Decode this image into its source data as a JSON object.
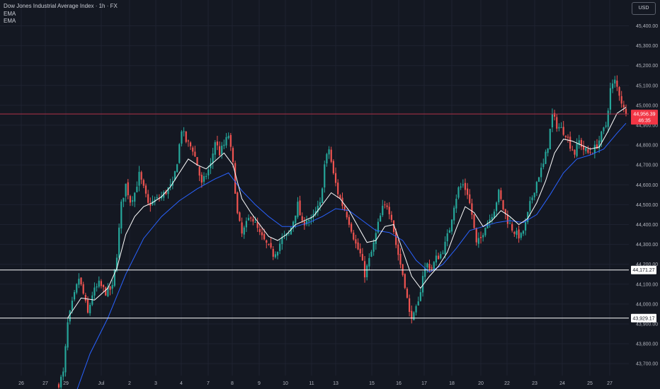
{
  "legend": {
    "title": "Dow Jones Industrial Average Index · 1h · FX",
    "indicator1": "EMA",
    "indicator2": "EMA"
  },
  "currency": "USD",
  "colors": {
    "background": "#141822",
    "grid": "#1e2230",
    "bull": "#26a69a",
    "bear": "#ef5350",
    "ema_fast": "#ffffff",
    "ema_slow": "#2962ff",
    "current_line": "#b0314a"
  },
  "chart_data": {
    "type": "candlestick",
    "symbol": "Dow Jones Industrial Average Index",
    "timeframe": "1h",
    "x_tick_labels": [
      "26",
      "27",
      "29",
      "Jul",
      "2",
      "3",
      "4",
      "7",
      "8",
      "9",
      "10",
      "11",
      "13",
      "15",
      "16",
      "17",
      "18",
      "20",
      "22",
      "23",
      "24",
      "25",
      "27"
    ],
    "y_ticks": [
      43700,
      43800,
      43900,
      44000,
      44100,
      44200,
      44300,
      44400,
      44500,
      44600,
      44700,
      44800,
      44900,
      45000,
      45100,
      45200,
      45300,
      45400
    ],
    "y_tick_labels": [
      "43,700.00",
      "43,800.00",
      "43,900.00",
      "44,000.00",
      "44,100.00",
      "44,200.00",
      "44,300.00",
      "44,400.00",
      "44,500.00",
      "44,600.00",
      "44,700.00",
      "44,800.00",
      "44,900.00",
      "45,000.00",
      "45,100.00",
      "45,200.00",
      "45,300.00",
      "45,400.00"
    ],
    "ylim": [
      43640,
      45530
    ],
    "current_price": 44956.39,
    "current_price_label": "44,956.39",
    "countdown_label": "46:35",
    "horizontal_levels": [
      {
        "value": 44171.27,
        "label": "44,171.27"
      },
      {
        "value": 43929.17,
        "label": "43,929.17"
      }
    ],
    "close_path": [
      [
        0,
        43600
      ],
      [
        2,
        43650
      ],
      [
        4,
        43900
      ],
      [
        6,
        44000
      ],
      [
        9,
        44130
      ],
      [
        11,
        44050
      ],
      [
        13,
        43950
      ],
      [
        15,
        44050
      ],
      [
        18,
        44100
      ],
      [
        21,
        44060
      ],
      [
        24,
        44080
      ],
      [
        26,
        44250
      ],
      [
        28,
        44500
      ],
      [
        30,
        44600
      ],
      [
        32,
        44520
      ],
      [
        34,
        44560
      ],
      [
        36,
        44650
      ],
      [
        38,
        44580
      ],
      [
        40,
        44500
      ],
      [
        43,
        44520
      ],
      [
        46,
        44540
      ],
      [
        49,
        44580
      ],
      [
        51,
        44600
      ],
      [
        53,
        44720
      ],
      [
        55,
        44880
      ],
      [
        57,
        44820
      ],
      [
        60,
        44780
      ],
      [
        62,
        44700
      ],
      [
        64,
        44600
      ],
      [
        66,
        44650
      ],
      [
        68,
        44700
      ],
      [
        70,
        44820
      ],
      [
        72,
        44760
      ],
      [
        74,
        44800
      ],
      [
        76,
        44850
      ],
      [
        78,
        44700
      ],
      [
        80,
        44450
      ],
      [
        82,
        44350
      ],
      [
        84,
        44400
      ],
      [
        86,
        44450
      ],
      [
        88,
        44400
      ],
      [
        90,
        44350
      ],
      [
        93,
        44300
      ],
      [
        96,
        44250
      ],
      [
        98,
        44280
      ],
      [
        100,
        44330
      ],
      [
        103,
        44350
      ],
      [
        105,
        44420
      ],
      [
        107,
        44500
      ],
      [
        109,
        44400
      ],
      [
        111,
        44430
      ],
      [
        113,
        44420
      ],
      [
        115,
        44460
      ],
      [
        117,
        44500
      ],
      [
        119,
        44700
      ],
      [
        121,
        44780
      ],
      [
        123,
        44650
      ],
      [
        125,
        44560
      ],
      [
        127,
        44500
      ],
      [
        129,
        44450
      ],
      [
        131,
        44380
      ],
      [
        133,
        44300
      ],
      [
        135,
        44250
      ],
      [
        137,
        44150
      ],
      [
        139,
        44220
      ],
      [
        141,
        44300
      ],
      [
        143,
        44400
      ],
      [
        145,
        44480
      ],
      [
        147,
        44500
      ],
      [
        149,
        44440
      ],
      [
        151,
        44300
      ],
      [
        153,
        44200
      ],
      [
        155,
        44100
      ],
      [
        157,
        43950
      ],
      [
        159,
        43940
      ],
      [
        161,
        44000
      ],
      [
        163,
        44150
      ],
      [
        165,
        44200
      ],
      [
        167,
        44180
      ],
      [
        169,
        44230
      ],
      [
        171,
        44250
      ],
      [
        173,
        44300
      ],
      [
        175,
        44380
      ],
      [
        177,
        44500
      ],
      [
        179,
        44580
      ],
      [
        181,
        44600
      ],
      [
        183,
        44560
      ],
      [
        185,
        44450
      ],
      [
        187,
        44300
      ],
      [
        189,
        44330
      ],
      [
        191,
        44400
      ],
      [
        193,
        44430
      ],
      [
        195,
        44480
      ],
      [
        197,
        44560
      ],
      [
        199,
        44480
      ],
      [
        201,
        44420
      ],
      [
        203,
        44380
      ],
      [
        205,
        44350
      ],
      [
        207,
        44340
      ],
      [
        209,
        44400
      ],
      [
        211,
        44500
      ],
      [
        213,
        44580
      ],
      [
        215,
        44650
      ],
      [
        217,
        44700
      ],
      [
        219,
        44800
      ],
      [
        221,
        44950
      ],
      [
        223,
        44900
      ],
      [
        225,
        44880
      ],
      [
        227,
        44860
      ],
      [
        229,
        44800
      ],
      [
        231,
        44760
      ],
      [
        233,
        44820
      ],
      [
        235,
        44780
      ],
      [
        237,
        44760
      ],
      [
        239,
        44770
      ],
      [
        241,
        44800
      ],
      [
        243,
        44850
      ],
      [
        245,
        44900
      ],
      [
        247,
        45080
      ],
      [
        249,
        45120
      ],
      [
        251,
        45060
      ],
      [
        253,
        44980
      ],
      [
        254,
        44956.39
      ]
    ],
    "ema_fast_path": [
      [
        4,
        43930
      ],
      [
        10,
        44030
      ],
      [
        16,
        44020
      ],
      [
        22,
        44080
      ],
      [
        26,
        44180
      ],
      [
        30,
        44350
      ],
      [
        34,
        44440
      ],
      [
        38,
        44490
      ],
      [
        42,
        44510
      ],
      [
        46,
        44540
      ],
      [
        50,
        44590
      ],
      [
        54,
        44660
      ],
      [
        58,
        44730
      ],
      [
        62,
        44700
      ],
      [
        66,
        44680
      ],
      [
        70,
        44720
      ],
      [
        74,
        44760
      ],
      [
        78,
        44700
      ],
      [
        82,
        44530
      ],
      [
        86,
        44460
      ],
      [
        90,
        44400
      ],
      [
        94,
        44340
      ],
      [
        98,
        44320
      ],
      [
        102,
        44350
      ],
      [
        106,
        44400
      ],
      [
        110,
        44420
      ],
      [
        114,
        44440
      ],
      [
        118,
        44500
      ],
      [
        122,
        44560
      ],
      [
        126,
        44530
      ],
      [
        130,
        44470
      ],
      [
        134,
        44390
      ],
      [
        138,
        44310
      ],
      [
        142,
        44320
      ],
      [
        146,
        44390
      ],
      [
        150,
        44400
      ],
      [
        154,
        44270
      ],
      [
        158,
        44140
      ],
      [
        162,
        44080
      ],
      [
        166,
        44140
      ],
      [
        170,
        44190
      ],
      [
        174,
        44260
      ],
      [
        178,
        44380
      ],
      [
        182,
        44490
      ],
      [
        186,
        44460
      ],
      [
        190,
        44390
      ],
      [
        194,
        44420
      ],
      [
        198,
        44470
      ],
      [
        202,
        44440
      ],
      [
        206,
        44400
      ],
      [
        210,
        44430
      ],
      [
        214,
        44510
      ],
      [
        218,
        44620
      ],
      [
        222,
        44760
      ],
      [
        226,
        44830
      ],
      [
        230,
        44820
      ],
      [
        234,
        44800
      ],
      [
        238,
        44780
      ],
      [
        242,
        44790
      ],
      [
        246,
        44870
      ],
      [
        250,
        44960
      ],
      [
        254,
        44990
      ]
    ],
    "ema_slow_path": [
      [
        6,
        43500
      ],
      [
        14,
        43750
      ],
      [
        22,
        43930
      ],
      [
        30,
        44150
      ],
      [
        38,
        44330
      ],
      [
        46,
        44440
      ],
      [
        54,
        44520
      ],
      [
        62,
        44580
      ],
      [
        70,
        44630
      ],
      [
        76,
        44660
      ],
      [
        82,
        44570
      ],
      [
        88,
        44500
      ],
      [
        94,
        44440
      ],
      [
        100,
        44390
      ],
      [
        106,
        44390
      ],
      [
        112,
        44410
      ],
      [
        118,
        44440
      ],
      [
        124,
        44480
      ],
      [
        130,
        44470
      ],
      [
        136,
        44420
      ],
      [
        142,
        44370
      ],
      [
        148,
        44360
      ],
      [
        154,
        44320
      ],
      [
        160,
        44220
      ],
      [
        166,
        44160
      ],
      [
        172,
        44200
      ],
      [
        178,
        44280
      ],
      [
        184,
        44370
      ],
      [
        190,
        44390
      ],
      [
        196,
        44410
      ],
      [
        202,
        44420
      ],
      [
        208,
        44410
      ],
      [
        214,
        44450
      ],
      [
        220,
        44550
      ],
      [
        226,
        44660
      ],
      [
        232,
        44730
      ],
      [
        238,
        44750
      ],
      [
        244,
        44780
      ],
      [
        250,
        44860
      ],
      [
        254,
        44910
      ]
    ]
  }
}
